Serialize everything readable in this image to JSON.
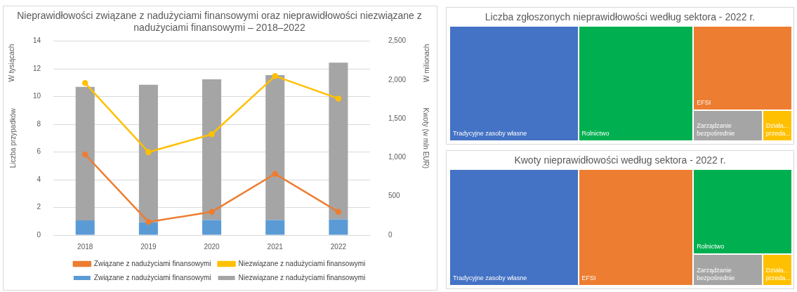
{
  "chart_data": [
    {
      "type": "bar",
      "title": "Nieprawidłowości związane z nadużyciami finansowymi oraz nieprawidłowości niezwiązane z nadużyciami finansowymi – 2018–2022",
      "ylabel": "Liczba przypadków",
      "y2label": "Kwoty (w mln EUR)",
      "annotations": [
        "W tysiącach",
        "W milionach"
      ],
      "categories": [
        "2018",
        "2019",
        "2020",
        "2021",
        "2022"
      ],
      "stacked": true,
      "series": [
        {
          "name": "Związane z nadużyciami finansowymi",
          "type": "bar",
          "color": "#5b9bd5",
          "values": [
            1.07,
            0.93,
            1.09,
            1.09,
            1.14
          ]
        },
        {
          "name": "Niezwiązane z nadużyciami finansowymi",
          "type": "bar",
          "color": "#a5a5a5",
          "values": [
            9.63,
            9.92,
            10.16,
            10.46,
            11.31
          ]
        },
        {
          "name": "Związane z nadużyciami finansowymi",
          "type": "line",
          "axis": "y2",
          "color": "#ed7d31",
          "values": [
            1040,
            170,
            300,
            790,
            300
          ]
        },
        {
          "name": "Niezwiązane z nadużyciami finansowymi",
          "type": "line",
          "axis": "y2",
          "color": "#ffc000",
          "values": [
            1960,
            1070,
            1300,
            2050,
            1760
          ]
        }
      ],
      "ylim": [
        0,
        14
      ],
      "yticks": [
        0,
        2,
        4,
        6,
        8,
        10,
        12,
        14
      ],
      "y2lim": [
        0,
        2500
      ],
      "y2ticks": [
        {
          "value": 0,
          "label": "0"
        },
        {
          "value": 500,
          "label": "500"
        },
        {
          "value": 1000,
          "label": "1,000"
        },
        {
          "value": 1500,
          "label": "1,500"
        },
        {
          "value": 2000,
          "label": "2,000"
        },
        {
          "value": 2500,
          "label": "2,500"
        }
      ],
      "grid": "y",
      "legend": "bottom",
      "marker": "circle"
    },
    {
      "type": "other",
      "title": "Liczba zgłoszonych nieprawidłowości według sektora - 2022 r.",
      "categories": [
        "Tradycyjne zasoby własne",
        "Rolnictwo",
        "EFSI",
        "Zarządzanie bezpośrednie",
        "Działa... przeda..."
      ],
      "colors": [
        "#4472c4",
        "#00b050",
        "#ed7d31",
        "#a5a5a5",
        "#ffc000"
      ]
    },
    {
      "type": "other",
      "title": "Kwoty nieprawidłowości według sektora - 2022 r.",
      "categories": [
        "Tradycyjne zasoby własne",
        "EFSI",
        "Rolnictwo",
        "Zarządzanie bezpośrednie",
        "Działa... przeda..."
      ],
      "colors": [
        "#4472c4",
        "#ed7d31",
        "#00b050",
        "#a5a5a5",
        "#ffc000"
      ]
    }
  ]
}
